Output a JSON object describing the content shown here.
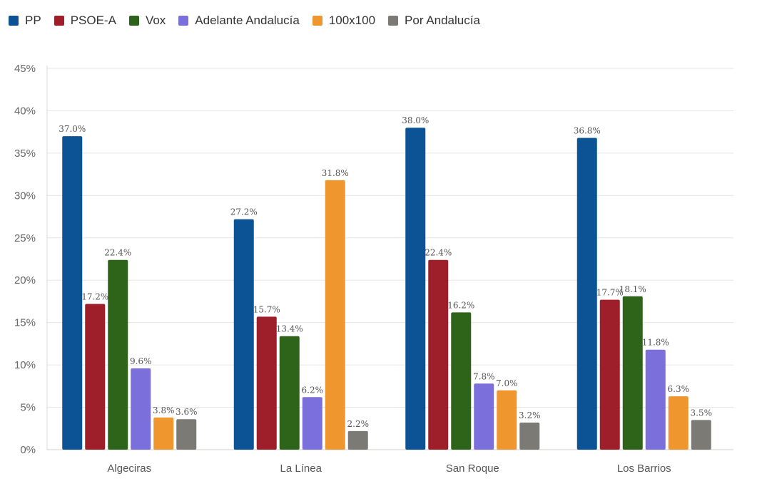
{
  "colors": {
    "PP": "#0b5394",
    "PSOE-A": "#9e1f2a",
    "Vox": "#2e6419",
    "Adelante Andalucía": "#7b6fdb",
    "100x100": "#f0962e",
    "Por Andalucía": "#7b7a74",
    "grid": "#e6e6e6"
  },
  "chart_data": {
    "type": "bar",
    "categories": [
      "Algeciras",
      "La Línea",
      "San Roque",
      "Los Barrios"
    ],
    "series": [
      {
        "name": "PP",
        "values": [
          37.0,
          27.2,
          38.0,
          36.8
        ],
        "labels": [
          "37.0%",
          "27.2%",
          "38.0%",
          "36.8%"
        ]
      },
      {
        "name": "PSOE-A",
        "values": [
          17.2,
          15.7,
          22.4,
          17.7
        ],
        "labels": [
          "17.2%",
          "15.7%",
          "22.4%",
          "17.7%"
        ]
      },
      {
        "name": "Vox",
        "values": [
          22.4,
          13.4,
          16.2,
          18.1
        ],
        "labels": [
          "22.4%",
          "13.4%",
          "16.2%",
          "18.1%"
        ]
      },
      {
        "name": "Adelante Andalucía",
        "values": [
          9.6,
          6.2,
          7.8,
          11.8
        ],
        "labels": [
          "9.6%",
          "6.2%",
          "7.8%",
          "11.8%"
        ]
      },
      {
        "name": "100x100",
        "values": [
          3.8,
          31.8,
          7.0,
          6.3
        ],
        "labels": [
          "3.8%",
          "31.8%",
          "7.0%",
          "6.3%"
        ]
      },
      {
        "name": "Por Andalucía",
        "values": [
          3.6,
          2.2,
          3.2,
          3.5
        ],
        "labels": [
          "3.6%",
          "2.2%",
          "3.2%",
          "3.5%"
        ]
      }
    ],
    "series_present": [
      [
        true,
        true,
        true,
        true,
        true,
        true
      ],
      [
        true,
        true,
        true,
        true,
        true,
        true
      ],
      [
        true,
        true,
        true,
        true,
        true,
        true
      ],
      [
        true,
        true,
        true,
        true,
        true,
        true
      ]
    ],
    "y_ticks": [
      "0%",
      "5%",
      "10%",
      "15%",
      "20%",
      "25%",
      "30%",
      "35%",
      "40%",
      "45%"
    ],
    "ylim": [
      0,
      45
    ],
    "legend_position": "top-left",
    "grid": true
  }
}
